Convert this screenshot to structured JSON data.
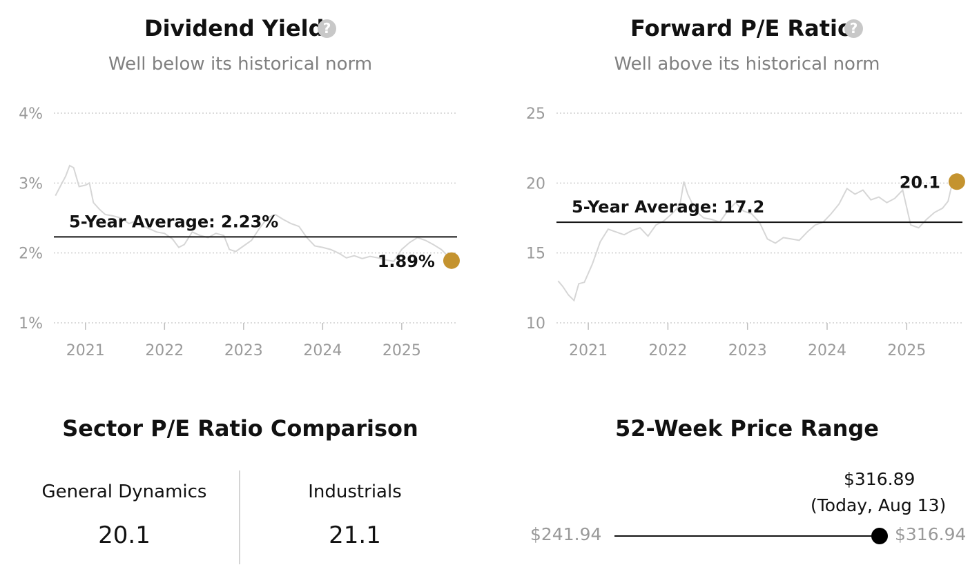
{
  "accent_color": "#c4932f",
  "chart_data": [
    {
      "type": "line",
      "title": "Dividend Yield",
      "help_icon": "question-circle-icon",
      "subtitle": "Well below its historical norm",
      "y_ticks": [
        "4%",
        "3%",
        "2%",
        "1%"
      ],
      "y_tick_values": [
        4,
        3,
        2,
        1
      ],
      "ylim": [
        1,
        4
      ],
      "x_ticks": [
        "2021",
        "2022",
        "2023",
        "2024",
        "2025"
      ],
      "x_tick_values": [
        2021,
        2022,
        2023,
        2024,
        2025
      ],
      "xlim": [
        2020.6,
        2025.7
      ],
      "grid": true,
      "series": [
        {
          "x": [
            2020.62,
            2020.68,
            2020.75,
            2020.8,
            2020.85,
            2020.92,
            2021.0,
            2021.05,
            2021.1,
            2021.18,
            2021.25,
            2021.35,
            2021.45,
            2021.55,
            2021.62,
            2021.7,
            2021.8,
            2021.9,
            2022.0,
            2022.1,
            2022.18,
            2022.25,
            2022.35,
            2022.45,
            2022.55,
            2022.65,
            2022.75,
            2022.82,
            2022.9,
            2023.0,
            2023.1,
            2023.2,
            2023.3,
            2023.4,
            2023.5,
            2023.6,
            2023.7,
            2023.8,
            2023.9,
            2024.0,
            2024.1,
            2024.2,
            2024.3,
            2024.4,
            2024.5,
            2024.6,
            2024.7,
            2024.8,
            2024.9,
            2025.0,
            2025.1,
            2025.2,
            2025.3,
            2025.4,
            2025.5,
            2025.58
          ],
          "y": [
            2.82,
            2.95,
            3.1,
            3.25,
            3.22,
            2.95,
            2.97,
            3.0,
            2.72,
            2.62,
            2.55,
            2.53,
            2.5,
            2.42,
            2.45,
            2.4,
            2.35,
            2.3,
            2.28,
            2.2,
            2.08,
            2.12,
            2.3,
            2.25,
            2.22,
            2.28,
            2.25,
            2.05,
            2.02,
            2.1,
            2.18,
            2.35,
            2.5,
            2.55,
            2.48,
            2.42,
            2.38,
            2.22,
            2.1,
            2.08,
            2.05,
            2.0,
            1.93,
            1.96,
            1.92,
            1.95,
            1.93,
            1.9,
            1.88,
            2.05,
            2.15,
            2.22,
            2.18,
            2.12,
            2.05,
            1.96
          ]
        }
      ],
      "reference_line": {
        "label": "5-Year Average: 2.23%",
        "value": 2.23
      },
      "current": {
        "label": "1.89%",
        "value": 1.89,
        "x": 2025.63
      }
    },
    {
      "type": "line",
      "title": "Forward P/E Ratio",
      "help_icon": "question-circle-icon",
      "subtitle": "Well above its historical norm",
      "y_ticks": [
        "25",
        "20",
        "15",
        "10"
      ],
      "y_tick_values": [
        25,
        20,
        15,
        10
      ],
      "ylim": [
        10,
        25
      ],
      "x_ticks": [
        "2021",
        "2022",
        "2023",
        "2024",
        "2025"
      ],
      "x_tick_values": [
        2021,
        2022,
        2023,
        2024,
        2025
      ],
      "xlim": [
        2020.6,
        2025.7
      ],
      "grid": true,
      "series": [
        {
          "x": [
            2020.62,
            2020.68,
            2020.75,
            2020.82,
            2020.88,
            2020.95,
            2021.05,
            2021.15,
            2021.25,
            2021.35,
            2021.45,
            2021.55,
            2021.65,
            2021.75,
            2021.85,
            2021.95,
            2022.05,
            2022.15,
            2022.2,
            2022.25,
            2022.35,
            2022.45,
            2022.55,
            2022.65,
            2022.75,
            2022.85,
            2022.95,
            2023.05,
            2023.15,
            2023.25,
            2023.35,
            2023.45,
            2023.55,
            2023.65,
            2023.75,
            2023.85,
            2023.95,
            2024.05,
            2024.15,
            2024.25,
            2024.35,
            2024.45,
            2024.55,
            2024.65,
            2024.75,
            2024.85,
            2024.95,
            2025.05,
            2025.15,
            2025.25,
            2025.35,
            2025.45,
            2025.52,
            2025.58
          ],
          "y": [
            13.0,
            12.6,
            12.0,
            11.6,
            12.8,
            12.9,
            14.2,
            15.8,
            16.7,
            16.5,
            16.3,
            16.6,
            16.8,
            16.2,
            17.0,
            17.3,
            17.8,
            18.4,
            20.1,
            19.2,
            18.0,
            17.5,
            17.4,
            17.2,
            18.0,
            18.6,
            18.0,
            17.8,
            17.2,
            16.0,
            15.7,
            16.1,
            16.0,
            15.9,
            16.5,
            17.0,
            17.2,
            17.8,
            18.5,
            19.6,
            19.2,
            19.5,
            18.8,
            19.0,
            18.6,
            18.9,
            19.5,
            17.0,
            16.8,
            17.4,
            17.9,
            18.2,
            18.7,
            20.2
          ]
        }
      ],
      "reference_line": {
        "label": "5-Year Average: 17.2",
        "value": 17.2
      },
      "current": {
        "label": "20.1",
        "value": 20.1,
        "x": 2025.63
      }
    }
  ],
  "sector": {
    "title": "Sector P/E Ratio Comparison",
    "items": [
      {
        "label": "General Dynamics",
        "value": "20.1"
      },
      {
        "label": "Industrials",
        "value": "21.1"
      }
    ]
  },
  "range52": {
    "title": "52-Week Price Range",
    "low": "$241.94",
    "high": "$316.94",
    "current_price": "$316.89",
    "current_note": "(Today, Aug 13)",
    "low_value": 241.94,
    "high_value": 316.94,
    "current_value": 316.89
  }
}
